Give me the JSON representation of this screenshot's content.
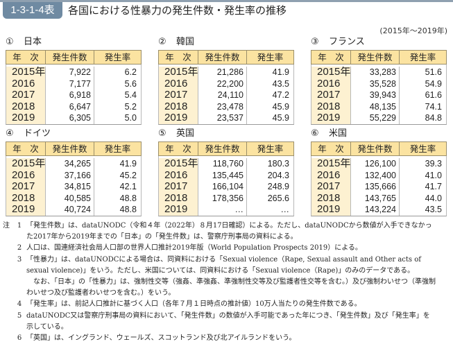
{
  "header": {
    "badge": "1-3-1-4表",
    "title": "各国における性暴力の発生件数・発生率の推移",
    "period": "(2015年～2019年)"
  },
  "columns": [
    "年　次",
    "発生件数",
    "発生率"
  ],
  "panels": [
    {
      "num": "①",
      "country": "日本",
      "rows": [
        {
          "year": "2015年",
          "count": "7,922",
          "rate": "6.2"
        },
        {
          "year": "2016",
          "count": "7,177",
          "rate": "5.6"
        },
        {
          "year": "2017",
          "count": "6,918",
          "rate": "5.4"
        },
        {
          "year": "2018",
          "count": "6,647",
          "rate": "5.2"
        },
        {
          "year": "2019",
          "count": "6,305",
          "rate": "5.0"
        }
      ]
    },
    {
      "num": "②",
      "country": "韓国",
      "rows": [
        {
          "year": "2015年",
          "count": "21,286",
          "rate": "41.9"
        },
        {
          "year": "2016",
          "count": "22,200",
          "rate": "43.5"
        },
        {
          "year": "2017",
          "count": "24,110",
          "rate": "47.2"
        },
        {
          "year": "2018",
          "count": "23,478",
          "rate": "45.9"
        },
        {
          "year": "2019",
          "count": "23,537",
          "rate": "45.9"
        }
      ]
    },
    {
      "num": "③",
      "country": "フランス",
      "rows": [
        {
          "year": "2015年",
          "count": "33,283",
          "rate": "51.6"
        },
        {
          "year": "2016",
          "count": "35,528",
          "rate": "54.9"
        },
        {
          "year": "2017",
          "count": "39,943",
          "rate": "61.6"
        },
        {
          "year": "2018",
          "count": "48,135",
          "rate": "74.1"
        },
        {
          "year": "2019",
          "count": "55,229",
          "rate": "84.8"
        }
      ]
    },
    {
      "num": "④",
      "country": "ドイツ",
      "rows": [
        {
          "year": "2015年",
          "count": "34,265",
          "rate": "41.9"
        },
        {
          "year": "2016",
          "count": "37,166",
          "rate": "45.2"
        },
        {
          "year": "2017",
          "count": "34,815",
          "rate": "42.1"
        },
        {
          "year": "2018",
          "count": "40,585",
          "rate": "48.8"
        },
        {
          "year": "2019",
          "count": "40,724",
          "rate": "48.8"
        }
      ]
    },
    {
      "num": "⑤",
      "country": "英国",
      "rows": [
        {
          "year": "2015年",
          "count": "118,760",
          "rate": "180.3"
        },
        {
          "year": "2016",
          "count": "135,445",
          "rate": "204.3"
        },
        {
          "year": "2017",
          "count": "166,104",
          "rate": "248.9"
        },
        {
          "year": "2018",
          "count": "178,356",
          "rate": "265.6"
        },
        {
          "year": "2019",
          "count": "…",
          "rate": "…"
        }
      ]
    },
    {
      "num": "⑥",
      "country": "米国",
      "rows": [
        {
          "year": "2015年",
          "count": "126,100",
          "rate": "39.3"
        },
        {
          "year": "2016",
          "count": "132,400",
          "rate": "41.0"
        },
        {
          "year": "2017",
          "count": "135,666",
          "rate": "41.7"
        },
        {
          "year": "2018",
          "count": "143,765",
          "rate": "44.0"
        },
        {
          "year": "2019",
          "count": "143,224",
          "rate": "43.5"
        }
      ]
    }
  ],
  "notes": {
    "label": "注",
    "items": [
      {
        "no": "1",
        "lines": [
          "「発生件数」は、dataUNODC（令和４年（2022年）８月17日確認）による。ただし、dataUNODCから数値が入手できなかっ",
          "た2017年から2019年までの「日本」の「発生件数」は、警察庁刑事局の資料による。"
        ]
      },
      {
        "no": "2",
        "lines": [
          "人口は、国連経済社会局人口部の世界人口推計2019年版（World Population Prospects 2019）による。"
        ]
      },
      {
        "no": "3",
        "lines": [
          "「性暴力」は、dataUNODCによる場合は、同資料における「Sexual violence（Rape, Sexual assault and Other acts of",
          "sexual violence)」をいう。ただし、米国については、同資料における「Sexual violence（Rape)」のみのデータである。",
          "なお、「日本」の「性暴力」は、強制性交等（強姦、準強姦、準強制性交等及び監護者性交等を含む。）及び強制わいせつ（準強制",
          "わいせつ及び監護者わいせつを含む。）をいう。"
        ]
      },
      {
        "no": "4",
        "lines": [
          "「発生率」は、前記人口推計に基づく人口（各年７月１日時点の推計値）10万人当たりの発生件数である。"
        ]
      },
      {
        "no": "5",
        "lines": [
          "dataUNODC又は警察庁刑事局の資料において、「発生件数」の数値が入手可能であった年につき、「発生件数」及び「発生率」を",
          "示している。"
        ]
      },
      {
        "no": "6",
        "lines": [
          "「英国」は、イングランド、ウェールズ、スコットランド及び北アイルランドをいう。"
        ]
      }
    ]
  }
}
